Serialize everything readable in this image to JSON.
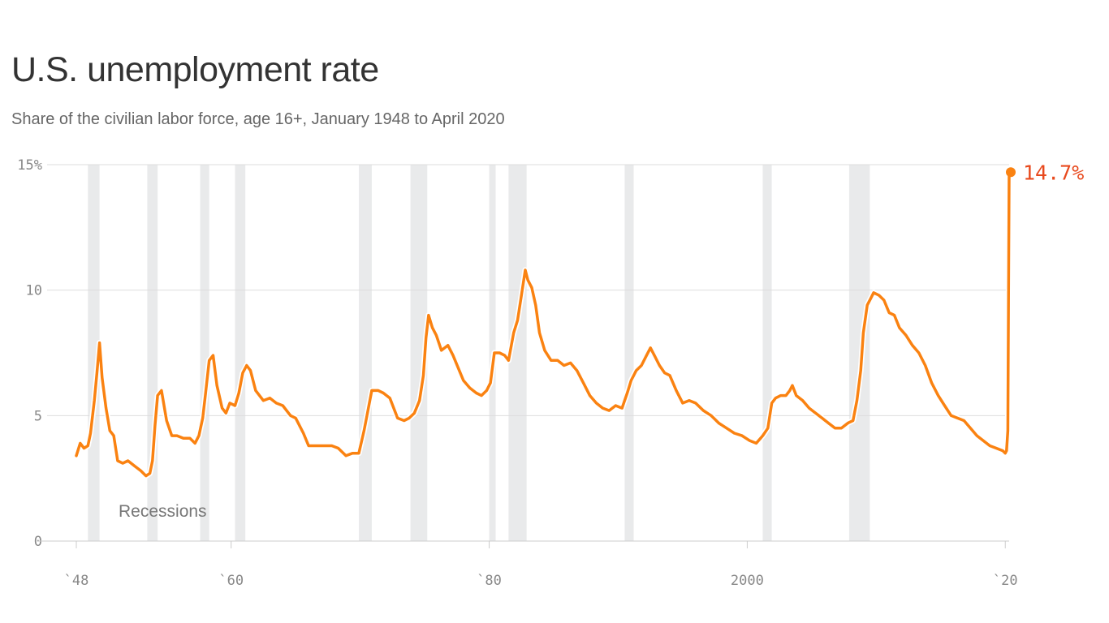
{
  "title": "U.S. unemployment rate",
  "subtitle": "Share of the civilian labor force, age 16+, January 1948 to April 2020",
  "colors": {
    "line": "#fa8211",
    "recession": "#e9eaeb",
    "grid": "#dddddd",
    "end_label": "#e8491d"
  },
  "chart_data": {
    "type": "line",
    "title": "U.S. unemployment rate",
    "subtitle": "Share of the civilian labor force, age 16+, January 1948 to April 2020",
    "xlabel": "",
    "ylabel": "",
    "xlim": [
      1948,
      2020.3
    ],
    "ylim": [
      0,
      15
    ],
    "y_ticks": [
      0,
      5,
      10,
      15
    ],
    "y_tick_labels": [
      "0",
      "5",
      "10",
      "15%"
    ],
    "x_ticks": [
      1948,
      1960,
      1980,
      2000,
      2020
    ],
    "x_tick_labels": [
      "`48",
      "`60",
      "`80",
      "2000",
      "`20"
    ],
    "grid": true,
    "recessions_label": "Recessions",
    "recessions": [
      [
        1948.9,
        1949.8
      ],
      [
        1953.5,
        1954.3
      ],
      [
        1957.6,
        1958.3
      ],
      [
        1960.3,
        1961.1
      ],
      [
        1969.9,
        1970.9
      ],
      [
        1973.9,
        1975.2
      ],
      [
        1980.0,
        1980.5
      ],
      [
        1981.5,
        1982.9
      ],
      [
        1990.5,
        1991.2
      ],
      [
        2001.2,
        2001.9
      ],
      [
        2007.9,
        2009.5
      ]
    ],
    "end_label": "14.7%",
    "series": [
      {
        "name": "Unemployment rate",
        "x": [
          1948.0,
          1948.3,
          1948.6,
          1948.9,
          1949.1,
          1949.4,
          1949.6,
          1949.8,
          1950.0,
          1950.3,
          1950.6,
          1950.9,
          1951.2,
          1951.6,
          1952.0,
          1952.5,
          1953.0,
          1953.4,
          1953.7,
          1953.9,
          1954.1,
          1954.3,
          1954.6,
          1955.0,
          1955.4,
          1955.8,
          1956.3,
          1956.8,
          1957.2,
          1957.5,
          1957.8,
          1958.0,
          1958.3,
          1958.6,
          1958.9,
          1959.3,
          1959.6,
          1959.9,
          1960.3,
          1960.6,
          1960.9,
          1961.2,
          1961.5,
          1961.9,
          1962.5,
          1963.0,
          1963.5,
          1964.0,
          1964.6,
          1965.0,
          1965.6,
          1966.0,
          1966.6,
          1967.2,
          1967.8,
          1968.3,
          1968.9,
          1969.4,
          1969.9,
          1970.3,
          1970.6,
          1970.9,
          1971.4,
          1971.8,
          1972.3,
          1972.9,
          1973.4,
          1973.8,
          1974.2,
          1974.6,
          1974.9,
          1975.1,
          1975.3,
          1975.6,
          1975.9,
          1976.3,
          1976.8,
          1977.2,
          1977.6,
          1978.0,
          1978.5,
          1979.0,
          1979.4,
          1979.8,
          1980.1,
          1980.4,
          1980.8,
          1981.2,
          1981.5,
          1981.9,
          1982.2,
          1982.5,
          1982.8,
          1983.0,
          1983.3,
          1983.6,
          1983.9,
          1984.3,
          1984.8,
          1985.3,
          1985.8,
          1986.3,
          1986.8,
          1987.3,
          1987.8,
          1988.3,
          1988.8,
          1989.3,
          1989.8,
          1990.3,
          1990.7,
          1991.0,
          1991.4,
          1991.8,
          1992.2,
          1992.5,
          1992.8,
          1993.2,
          1993.6,
          1994.0,
          1994.5,
          1995.0,
          1995.5,
          1996.0,
          1996.6,
          1997.2,
          1997.8,
          1998.4,
          1999.0,
          1999.6,
          2000.2,
          2000.7,
          2001.2,
          2001.6,
          2001.9,
          2002.2,
          2002.6,
          2003.0,
          2003.3,
          2003.5,
          2003.8,
          2004.3,
          2004.8,
          2005.3,
          2005.8,
          2006.3,
          2006.8,
          2007.3,
          2007.8,
          2008.2,
          2008.5,
          2008.8,
          2009.0,
          2009.3,
          2009.6,
          2009.8,
          2010.2,
          2010.6,
          2011.0,
          2011.4,
          2011.8,
          2012.3,
          2012.8,
          2013.3,
          2013.8,
          2014.3,
          2014.8,
          2015.3,
          2015.8,
          2016.3,
          2016.8,
          2017.3,
          2017.8,
          2018.3,
          2018.8,
          2019.3,
          2019.8,
          2020.0,
          2020.1,
          2020.2,
          2020.3
        ],
        "values": [
          3.4,
          3.9,
          3.7,
          3.8,
          4.3,
          5.6,
          6.7,
          7.9,
          6.5,
          5.3,
          4.4,
          4.2,
          3.2,
          3.1,
          3.2,
          3.0,
          2.8,
          2.6,
          2.7,
          3.2,
          4.6,
          5.8,
          6.0,
          4.8,
          4.2,
          4.2,
          4.1,
          4.1,
          3.9,
          4.2,
          4.9,
          5.8,
          7.2,
          7.4,
          6.2,
          5.3,
          5.1,
          5.5,
          5.4,
          5.9,
          6.7,
          7.0,
          6.8,
          6.0,
          5.6,
          5.7,
          5.5,
          5.4,
          5.0,
          4.9,
          4.3,
          3.8,
          3.8,
          3.8,
          3.8,
          3.7,
          3.4,
          3.5,
          3.5,
          4.4,
          5.2,
          6.0,
          6.0,
          5.9,
          5.7,
          4.9,
          4.8,
          4.9,
          5.1,
          5.6,
          6.6,
          8.1,
          9.0,
          8.5,
          8.2,
          7.6,
          7.8,
          7.4,
          6.9,
          6.4,
          6.1,
          5.9,
          5.8,
          6.0,
          6.3,
          7.5,
          7.5,
          7.4,
          7.2,
          8.3,
          8.8,
          9.8,
          10.8,
          10.4,
          10.1,
          9.4,
          8.3,
          7.6,
          7.2,
          7.2,
          7.0,
          7.1,
          6.8,
          6.3,
          5.8,
          5.5,
          5.3,
          5.2,
          5.4,
          5.3,
          5.9,
          6.4,
          6.8,
          7.0,
          7.4,
          7.7,
          7.4,
          7.0,
          6.7,
          6.6,
          6.0,
          5.5,
          5.6,
          5.5,
          5.2,
          5.0,
          4.7,
          4.5,
          4.3,
          4.2,
          4.0,
          3.9,
          4.2,
          4.5,
          5.5,
          5.7,
          5.8,
          5.8,
          6.0,
          6.2,
          5.8,
          5.6,
          5.3,
          5.1,
          4.9,
          4.7,
          4.5,
          4.5,
          4.7,
          4.8,
          5.6,
          6.8,
          8.3,
          9.4,
          9.7,
          9.9,
          9.8,
          9.6,
          9.1,
          9.0,
          8.5,
          8.2,
          7.8,
          7.5,
          7.0,
          6.3,
          5.8,
          5.4,
          5.0,
          4.9,
          4.8,
          4.5,
          4.2,
          4.0,
          3.8,
          3.7,
          3.6,
          3.5,
          3.6,
          4.4,
          14.7
        ]
      }
    ]
  }
}
